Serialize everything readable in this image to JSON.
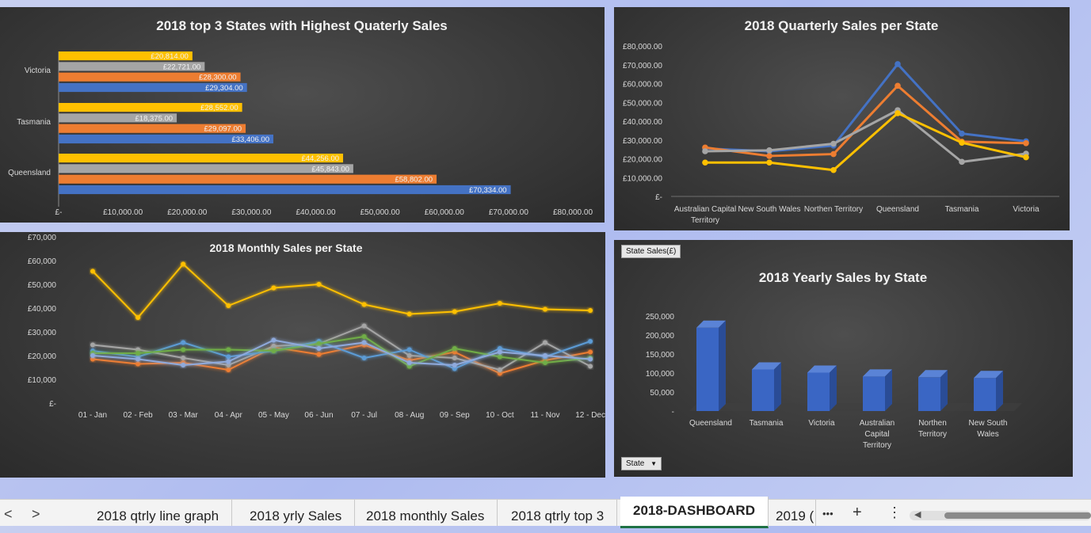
{
  "colors": {
    "q1": "#4472c4",
    "q2": "#ed7d31",
    "q3": "#a5a5a5",
    "q4": "#ffc000",
    "bar3d": "#3a66c4"
  },
  "charts": {
    "top3": {
      "title": "2018 top 3 States with Highest Quaterly Sales",
      "x_ticks": [
        "£-",
        "£10,000.00",
        "£20,000.00",
        "£30,000.00",
        "£40,000.00",
        "£50,000.00",
        "£60,000.00",
        "£70,000.00",
        "£80,000.00"
      ]
    },
    "quarterly": {
      "title": "2018 Quarterly Sales per State",
      "y_ticks": [
        "£-",
        "£10,000.00",
        "£20,000.00",
        "£30,000.00",
        "£40,000.00",
        "£50,000.00",
        "£60,000.00",
        "£70,000.00",
        "£80,000.00"
      ]
    },
    "monthly": {
      "title": "2018 Monthly Sales per State",
      "y_ticks": [
        "£-",
        "£10,000",
        "£20,000",
        "£30,000",
        "£40,000",
        "£50,000",
        "£60,000",
        "£70,000"
      ]
    },
    "yearly": {
      "title": "2018 Yearly Sales by State",
      "y_ticks": [
        "-",
        "50,000",
        "100,000",
        "150,000",
        "200,000",
        "250,000"
      ],
      "field_button": "State Sales(£)",
      "filter_button": "State"
    }
  },
  "chart_data": [
    {
      "type": "bar",
      "title": "2018 top 3 States with Highest Quaterly Sales",
      "orientation": "horizontal",
      "categories": [
        "Victoria",
        "Tasmania",
        "Queensland"
      ],
      "xlim": [
        0,
        80000
      ],
      "series": [
        {
          "color": "#ffc000",
          "values": [
            20814,
            28552,
            44256
          ],
          "labels": [
            "£20,814.00",
            "£28,552.00",
            "£44,256.00"
          ]
        },
        {
          "color": "#a5a5a5",
          "values": [
            22721,
            18375,
            45843
          ],
          "labels": [
            "£22,721.00",
            "£18,375.00",
            "£45,843.00"
          ]
        },
        {
          "color": "#ed7d31",
          "values": [
            28300,
            29097,
            58802
          ],
          "labels": [
            "£28,300.00",
            "£29,097.00",
            "£58,802.00"
          ]
        },
        {
          "color": "#4472c4",
          "values": [
            29304,
            33406,
            70334
          ],
          "labels": [
            "£29,304.00",
            "£33,406.00",
            "£70,334.00"
          ]
        }
      ]
    },
    {
      "type": "line",
      "title": "2018 Quarterly Sales per State",
      "categories": [
        "Australian Capital Territory",
        "New South Wales",
        "Northen Territory",
        "Queensland",
        "Tasmania",
        "Victoria"
      ],
      "ylim": [
        0,
        80000
      ],
      "series": [
        {
          "color": "#4472c4",
          "values": [
            25500,
            24000,
            27000,
            70334,
            33406,
            29304
          ]
        },
        {
          "color": "#ed7d31",
          "values": [
            26000,
            21500,
            22500,
            58802,
            29097,
            28300
          ]
        },
        {
          "color": "#a5a5a5",
          "values": [
            24000,
            24500,
            28000,
            45843,
            18375,
            22721
          ]
        },
        {
          "color": "#ffc000",
          "values": [
            18000,
            18000,
            14000,
            44256,
            28552,
            20814
          ]
        }
      ]
    },
    {
      "type": "line",
      "title": "2018 Monthly Sales per State",
      "categories": [
        "01 - Jan",
        "02 - Feb",
        "03 - Mar",
        "04 - Apr",
        "05 - May",
        "06 - Jun",
        "07 - Jul",
        "08 - Aug",
        "09 - Sep",
        "10 - Oct",
        "11 - Nov",
        "12 - Dec"
      ],
      "ylim": [
        0,
        70000
      ],
      "series": [
        {
          "color": "#ffc000",
          "values": [
            55500,
            36000,
            58500,
            41000,
            48500,
            50000,
            41500,
            37500,
            38500,
            42000,
            39500,
            39000
          ]
        },
        {
          "color": "#ed7d31",
          "values": [
            18500,
            16500,
            17000,
            14000,
            23500,
            20500,
            24500,
            18000,
            21500,
            12500,
            18000,
            21500
          ]
        },
        {
          "color": "#a5a5a5",
          "values": [
            24500,
            22500,
            19000,
            16000,
            24000,
            25000,
            32500,
            20000,
            19000,
            14000,
            25500,
            15500
          ]
        },
        {
          "color": "#5b9bd5",
          "values": [
            22000,
            19500,
            25500,
            19500,
            22000,
            26000,
            19000,
            22500,
            14500,
            23000,
            19500,
            26000
          ]
        },
        {
          "color": "#70ad47",
          "values": [
            21000,
            21000,
            22500,
            22500,
            22000,
            25000,
            28000,
            15500,
            23000,
            19500,
            17000,
            19000
          ]
        },
        {
          "color": "#8faadc",
          "values": [
            20000,
            18500,
            16000,
            17500,
            26500,
            23000,
            25500,
            17000,
            16000,
            21500,
            20000,
            18500
          ]
        }
      ]
    },
    {
      "type": "bar",
      "title": "2018 Yearly Sales by State",
      "categories": [
        "Queensland",
        "Tasmania",
        "Victoria",
        "Australian Capital Territory",
        "Northen Territory",
        "New South Wales"
      ],
      "values": [
        219235,
        109430,
        101139,
        91000,
        89000,
        87000
      ],
      "ylim": [
        0,
        250000
      ],
      "color": "#3a66c4"
    }
  ],
  "sheet_tabs": {
    "nav_prev": "<",
    "nav_next": ">",
    "tabs": [
      "2018 qtrly line graph",
      "2018 yrly Sales",
      "2018 monthly Sales",
      "2018 qtrly top 3",
      "2018-DASHBOARD",
      "2019 ("
    ],
    "more_label": "•••",
    "add_label": "+",
    "menu_label": "⋮",
    "scroll_left": "◀"
  }
}
